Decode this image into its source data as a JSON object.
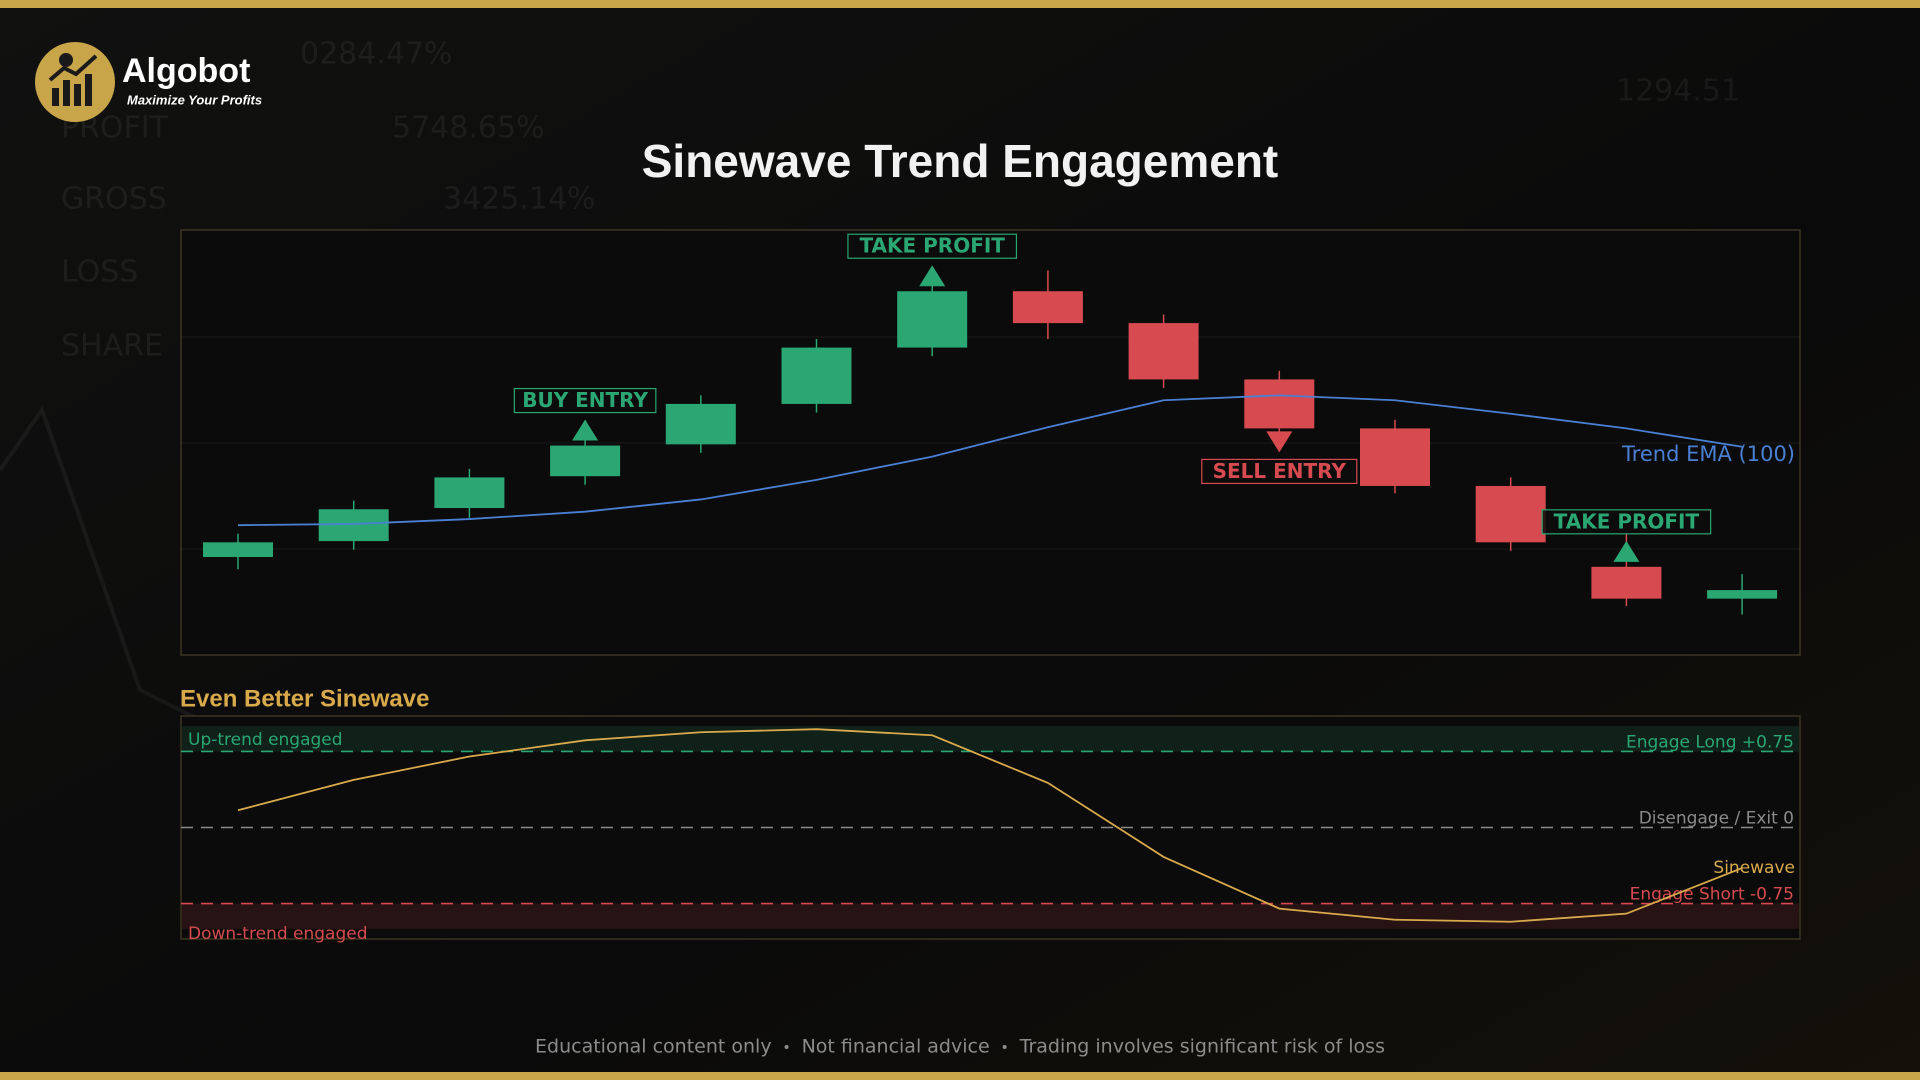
{
  "header": {
    "brand": "Algobot",
    "tagline": "Maximize Your Profits"
  },
  "background_text": [
    "0284.47%",
    "5748.65%",
    "GROSS",
    "3425.14%",
    "LOSS",
    "SHARE",
    "1294.51",
    "PROFIT"
  ],
  "chart_data": [
    {
      "type": "candlestick",
      "title": "Sinewave Trend Engagement",
      "open": [
        80,
        93,
        120,
        146,
        172,
        205,
        251,
        297,
        271,
        225,
        185,
        138,
        72,
        46
      ],
      "high": [
        99,
        126,
        152,
        178,
        212,
        258,
        304,
        314,
        278,
        232,
        192,
        145,
        99,
        66
      ],
      "low": [
        70,
        86,
        112,
        139,
        165,
        198,
        244,
        258,
        218,
        178,
        132,
        85,
        40,
        33
      ],
      "close": [
        92,
        119,
        145,
        171,
        205,
        251,
        297,
        271,
        225,
        185,
        138,
        92,
        46,
        53
      ],
      "up_color": "#2aa772",
      "down_color": "#d64a50",
      "ylim": [
        0,
        347
      ],
      "overlays": [
        {
          "name": "Trend EMA (100)",
          "color": "#4a80d4",
          "values": [
            106,
            107,
            111,
            117,
            127,
            143,
            162,
            186,
            208,
            212,
            208,
            197,
            185,
            170
          ]
        }
      ],
      "annotations": [
        {
          "text": "BUY ENTRY",
          "index": 3,
          "direction": "up"
        },
        {
          "text": "TAKE PROFIT",
          "index": 6,
          "direction": "up"
        },
        {
          "text": "SELL ENTRY",
          "index": 9,
          "direction": "down"
        },
        {
          "text": "TAKE PROFIT",
          "index": 12,
          "direction": "up"
        }
      ]
    },
    {
      "type": "line",
      "title": "Even Better Sinewave",
      "series": [
        {
          "name": "Sinewave",
          "color": "#d9aa4c",
          "values": [
            0.17,
            0.47,
            0.7,
            0.86,
            0.94,
            0.97,
            0.91,
            0.44,
            -0.29,
            -0.8,
            -0.91,
            -0.93,
            -0.85,
            -0.4
          ]
        }
      ],
      "ylim": [
        -1.1,
        1.1
      ],
      "zones": [
        {
          "label": "Up-trend engaged",
          "from": 0.75,
          "to": 1.0,
          "color": "#2aa772"
        },
        {
          "label": "Down-trend engaged",
          "from": -1.0,
          "to": -0.75,
          "color": "#d64a50"
        }
      ],
      "reference_lines": [
        {
          "value": 0.75,
          "label": "Engage Long +0.75",
          "color": "#2aa772"
        },
        {
          "value": 0,
          "label": "Disengage / Exit 0",
          "color": "#8a8a8a"
        },
        {
          "value": -0.75,
          "label": "Engage Short -0.75",
          "color": "#d64a50"
        }
      ]
    }
  ],
  "footer": [
    "Educational content only",
    "Not financial advice",
    "Trading involves significant risk of loss"
  ]
}
